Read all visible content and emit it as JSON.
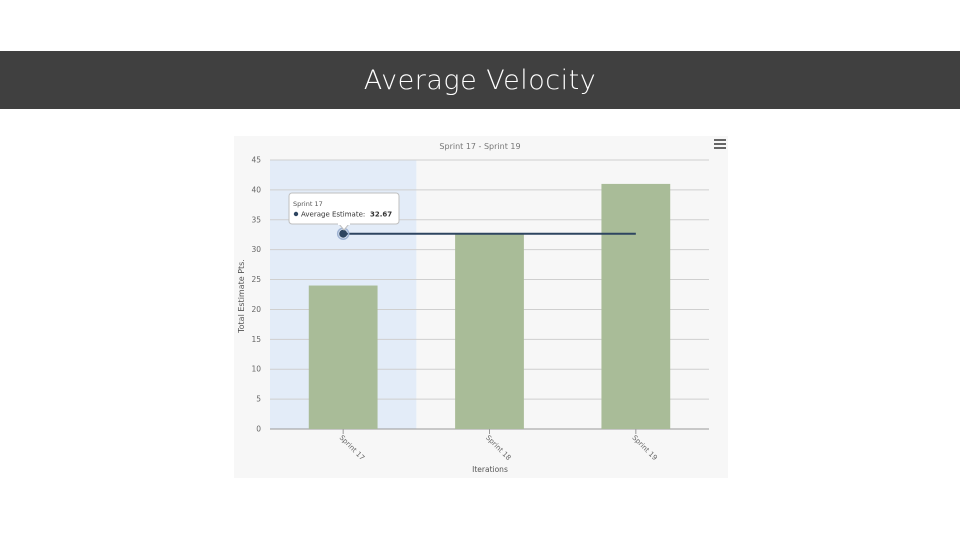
{
  "slide": {
    "title": "Average Velocity"
  },
  "chart_data": {
    "type": "bar",
    "title": "Sprint 17 - Sprint 19",
    "xlabel": "Iterations",
    "ylabel": "Total Estimate Pts.",
    "categories": [
      "Sprint 17",
      "Sprint 18",
      "Sprint 19"
    ],
    "ylim": [
      0,
      45
    ],
    "yticks": [
      0,
      5,
      10,
      15,
      20,
      25,
      30,
      35,
      40,
      45
    ],
    "series": [
      {
        "name": "",
        "type": "bar",
        "values": [
          24,
          32.7,
          41
        ],
        "color": "#a9bc98"
      },
      {
        "name": "Average Estimate",
        "type": "line",
        "values": [
          32.67,
          32.67,
          32.67
        ],
        "color": "#2e4560"
      }
    ],
    "highlighted_category": "Sprint 17",
    "highlight_color": "#e3ecf8",
    "grid": true,
    "tooltip": {
      "header": "Sprint 17",
      "label": "Average Estimate:",
      "value": "32.67"
    }
  }
}
